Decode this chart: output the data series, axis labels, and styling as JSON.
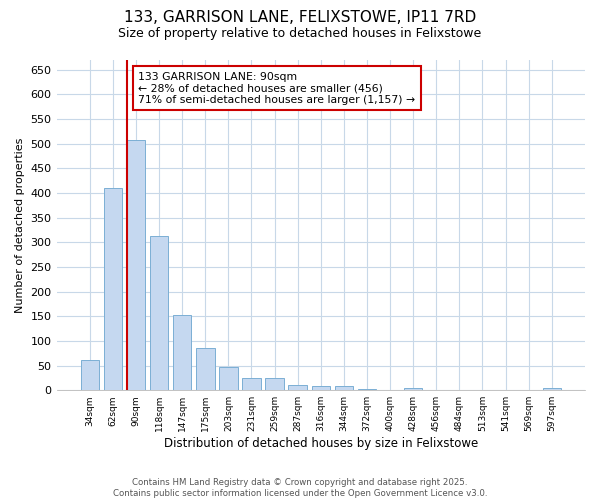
{
  "title1": "133, GARRISON LANE, FELIXSTOWE, IP11 7RD",
  "title2": "Size of property relative to detached houses in Felixstowe",
  "xlabel": "Distribution of detached houses by size in Felixstowe",
  "ylabel": "Number of detached properties",
  "categories": [
    "34sqm",
    "62sqm",
    "90sqm",
    "118sqm",
    "147sqm",
    "175sqm",
    "203sqm",
    "231sqm",
    "259sqm",
    "287sqm",
    "316sqm",
    "344sqm",
    "372sqm",
    "400sqm",
    "428sqm",
    "456sqm",
    "484sqm",
    "513sqm",
    "541sqm",
    "569sqm",
    "597sqm"
  ],
  "values": [
    62,
    410,
    507,
    312,
    153,
    85,
    47,
    25,
    25,
    11,
    9,
    8,
    3,
    0,
    4,
    0,
    0,
    0,
    0,
    0,
    5
  ],
  "bar_color": "#c5d8f0",
  "bar_edge_color": "#7bafd4",
  "vline_color": "#cc0000",
  "annotation_text": "133 GARRISON LANE: 90sqm\n← 28% of detached houses are smaller (456)\n71% of semi-detached houses are larger (1,157) →",
  "annotation_box_color": "#ffffff",
  "annotation_box_edge": "#cc0000",
  "ylim": [
    0,
    670
  ],
  "yticks": [
    0,
    50,
    100,
    150,
    200,
    250,
    300,
    350,
    400,
    450,
    500,
    550,
    600,
    650
  ],
  "footnote1": "Contains HM Land Registry data © Crown copyright and database right 2025.",
  "footnote2": "Contains public sector information licensed under the Open Government Licence v3.0.",
  "bg_color": "#ffffff",
  "plot_bg_color": "#ffffff",
  "grid_color": "#c8d8e8",
  "title1_fontsize": 11,
  "title2_fontsize": 9
}
